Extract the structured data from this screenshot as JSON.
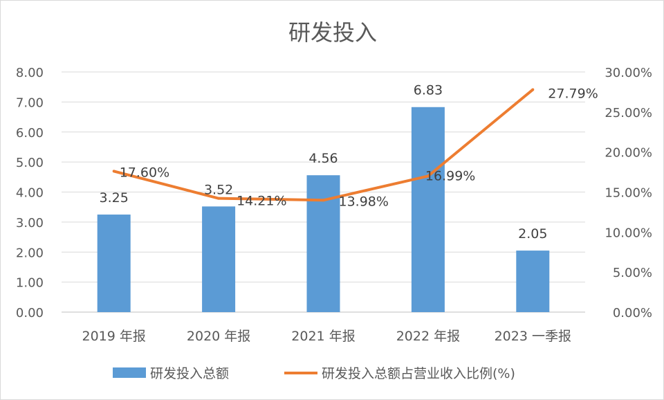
{
  "chart_data": {
    "type": "bar+line",
    "title": "研发投入",
    "categories": [
      "2019 年报",
      "2020 年报",
      "2021 年报",
      "2022 年报",
      "2023 一季报"
    ],
    "series": [
      {
        "name": "研发投入总额",
        "type": "bar",
        "axis": "left",
        "values": [
          3.25,
          3.52,
          4.56,
          6.83,
          2.05
        ],
        "labels": [
          "3.25",
          "3.52",
          "4.56",
          "6.83",
          "2.05"
        ],
        "color": "#5B9BD5"
      },
      {
        "name": "研发投入总额占营业收入比例(%)",
        "type": "line",
        "axis": "right",
        "values": [
          17.6,
          14.21,
          13.98,
          16.99,
          27.79
        ],
        "labels": [
          "17.60%",
          "14.21%",
          "13.98%",
          "16.99%",
          "27.79%"
        ],
        "color": "#ED7D31"
      }
    ],
    "y_left": {
      "ylim": [
        0,
        8
      ],
      "ticks": [
        "0.00",
        "1.00",
        "2.00",
        "3.00",
        "4.00",
        "5.00",
        "6.00",
        "7.00",
        "8.00"
      ]
    },
    "y_right": {
      "ylim": [
        0,
        30
      ],
      "ticks": [
        "0.00%",
        "5.00%",
        "10.00%",
        "15.00%",
        "20.00%",
        "25.00%",
        "30.00%"
      ]
    },
    "grid": true,
    "legend": "bottom"
  }
}
